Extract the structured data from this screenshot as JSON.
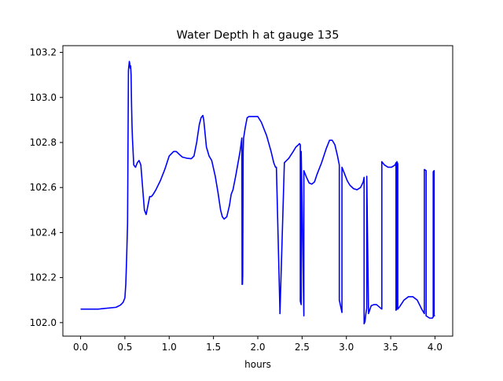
{
  "chart_data": {
    "type": "line",
    "title": "Water Depth h at gauge 135",
    "xlabel": "hours",
    "ylabel": "",
    "xlim": [
      -0.2,
      4.2
    ],
    "ylim": [
      101.94,
      103.23
    ],
    "grid": false,
    "legend": "none",
    "x_ticks": [
      0.0,
      0.5,
      1.0,
      1.5,
      2.0,
      2.5,
      3.0,
      3.5,
      4.0
    ],
    "x_tick_labels": [
      "0.0",
      "0.5",
      "1.0",
      "1.5",
      "2.0",
      "2.5",
      "3.0",
      "3.5",
      "4.0"
    ],
    "y_ticks": [
      102.0,
      102.2,
      102.4,
      102.6,
      102.8,
      103.0,
      103.2
    ],
    "y_tick_labels": [
      "102.0",
      "102.2",
      "102.4",
      "102.6",
      "102.8",
      "103.0",
      "103.2"
    ],
    "series": [
      {
        "color": "#0000ff",
        "x": [
          0.0,
          0.2,
          0.4,
          0.45,
          0.48,
          0.5,
          0.51,
          0.52,
          0.53,
          0.54,
          0.545,
          0.55,
          0.555,
          0.56,
          0.565,
          0.57,
          0.575,
          0.58,
          0.585,
          0.6,
          0.62,
          0.64,
          0.66,
          0.68,
          0.7,
          0.72,
          0.74,
          0.76,
          0.78,
          0.8,
          0.82,
          0.85,
          0.9,
          0.95,
          1.0,
          1.05,
          1.08,
          1.12,
          1.15,
          1.2,
          1.25,
          1.28,
          1.31,
          1.34,
          1.36,
          1.38,
          1.39,
          1.4,
          1.42,
          1.45,
          1.48,
          1.52,
          1.55,
          1.58,
          1.6,
          1.62,
          1.65,
          1.68,
          1.7,
          1.72,
          1.75,
          1.8,
          1.82,
          1.823,
          1.827,
          1.83,
          1.835,
          1.84,
          1.86,
          1.88,
          1.9,
          1.95,
          2.0,
          2.04,
          2.1,
          2.15,
          2.18,
          2.2,
          2.2,
          2.21,
          2.25,
          2.25,
          2.3,
          2.35,
          2.4,
          2.43,
          2.46,
          2.47,
          2.48,
          2.48,
          2.49,
          2.49,
          2.52,
          2.52,
          2.55,
          2.58,
          2.61,
          2.64,
          2.67,
          2.72,
          2.77,
          2.81,
          2.84,
          2.87,
          2.9,
          2.92,
          2.92,
          2.95,
          2.95,
          2.98,
          3.01,
          3.04,
          3.08,
          3.12,
          3.16,
          3.19,
          3.2,
          3.2,
          3.21,
          3.22,
          3.23,
          3.23,
          3.25,
          3.28,
          3.31,
          3.34,
          3.37,
          3.4,
          3.4,
          3.43,
          3.47,
          3.51,
          3.55,
          3.56,
          3.56,
          3.57,
          3.57,
          3.58,
          3.58,
          3.6,
          3.65,
          3.7,
          3.75,
          3.8,
          3.85,
          3.88,
          3.88,
          3.9,
          3.9,
          3.94,
          3.96,
          3.97,
          3.98,
          3.98,
          3.99,
          3.99,
          4.0
        ],
        "y": [
          102.06,
          102.06,
          102.068,
          102.078,
          102.09,
          102.11,
          102.17,
          102.29,
          102.44,
          103.12,
          103.14,
          103.16,
          103.15,
          103.13,
          103.14,
          103.1,
          102.97,
          102.88,
          102.82,
          102.7,
          102.69,
          102.71,
          102.72,
          102.7,
          102.6,
          102.5,
          102.48,
          102.52,
          102.56,
          102.56,
          102.57,
          102.59,
          102.63,
          102.68,
          102.74,
          102.76,
          102.76,
          102.745,
          102.735,
          102.73,
          102.728,
          102.74,
          102.8,
          102.88,
          102.91,
          102.92,
          102.9,
          102.86,
          102.78,
          102.74,
          102.72,
          102.65,
          102.58,
          102.5,
          102.47,
          102.46,
          102.47,
          102.52,
          102.57,
          102.59,
          102.65,
          102.76,
          102.82,
          102.17,
          102.17,
          102.21,
          102.76,
          102.82,
          102.87,
          102.91,
          102.915,
          102.915,
          102.915,
          102.89,
          102.83,
          102.76,
          102.71,
          102.69,
          102.69,
          102.69,
          102.05,
          102.04,
          102.71,
          102.73,
          102.76,
          102.78,
          102.79,
          102.795,
          102.79,
          102.095,
          102.08,
          102.76,
          102.03,
          102.675,
          102.645,
          102.62,
          102.615,
          102.625,
          102.66,
          102.71,
          102.77,
          102.81,
          102.81,
          102.79,
          102.74,
          102.7,
          102.1,
          102.045,
          102.69,
          102.66,
          102.63,
          102.61,
          102.595,
          102.59,
          102.6,
          102.625,
          102.645,
          101.995,
          102.005,
          102.04,
          102.065,
          102.65,
          102.04,
          102.075,
          102.08,
          102.08,
          102.07,
          102.06,
          102.715,
          102.7,
          102.69,
          102.69,
          102.7,
          102.71,
          102.055,
          102.06,
          102.715,
          102.705,
          102.06,
          102.07,
          102.1,
          102.115,
          102.115,
          102.1,
          102.06,
          102.04,
          102.68,
          102.675,
          102.03,
          102.02,
          102.02,
          102.02,
          102.025,
          102.67,
          102.675,
          102.03,
          102.03
        ]
      }
    ]
  }
}
